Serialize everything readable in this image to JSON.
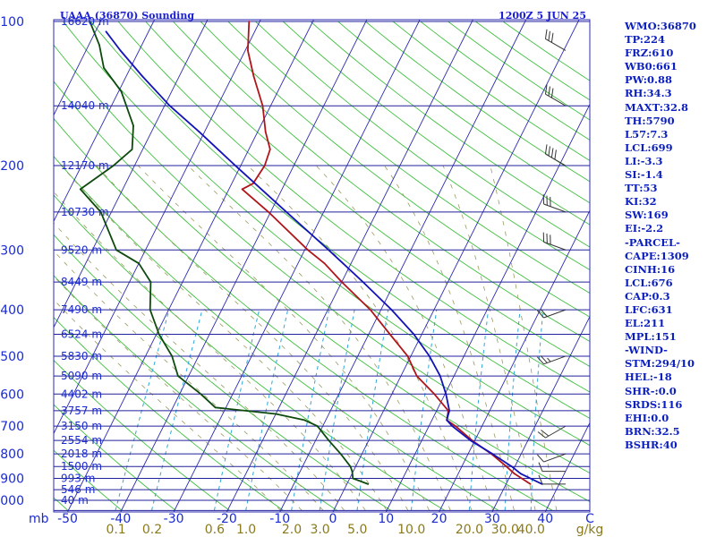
{
  "chart_data": {
    "type": "skew-t log-p sounding",
    "title": "UAAA (36870) Sounding",
    "valid_time": "1200Z  5 JUN 25",
    "pressure_axis": {
      "unit_label": "mb",
      "ticks": [
        100,
        200,
        300,
        400,
        500,
        600,
        700,
        800,
        900,
        1000
      ],
      "range": [
        1050,
        100
      ],
      "scale": "log"
    },
    "temperature_axis": {
      "ticks": [
        -50,
        -40,
        -30,
        -20,
        -10,
        0,
        10,
        20,
        30,
        40
      ],
      "end_label": "C",
      "range": [
        -50,
        50
      ]
    },
    "mixing_ratio_axis": {
      "unit_label": "g/kg",
      "ticks": [
        "0.1",
        "0.2",
        "0.6",
        "1.0",
        "2.0",
        "3.0",
        "5.0",
        "10.0",
        "20.0",
        "30.0",
        "40.0"
      ]
    },
    "height_labels": [
      {
        "p": 100,
        "label": "16620 m"
      },
      {
        "p": 150,
        "label": "14040 m"
      },
      {
        "p": 200,
        "label": "12170 m"
      },
      {
        "p": 250,
        "label": "10730 m"
      },
      {
        "p": 300,
        "label": "9520 m"
      },
      {
        "p": 350,
        "label": "8449 m"
      },
      {
        "p": 400,
        "label": "7490 m"
      },
      {
        "p": 450,
        "label": "6524 m"
      },
      {
        "p": 500,
        "label": "5830 m"
      },
      {
        "p": 550,
        "label": "5090 m"
      },
      {
        "p": 600,
        "label": "4402 m"
      },
      {
        "p": 650,
        "label": "3757 m"
      },
      {
        "p": 700,
        "label": "3150 m"
      },
      {
        "p": 750,
        "label": "2554 m"
      },
      {
        "p": 800,
        "label": "2018 m"
      },
      {
        "p": 850,
        "label": "1500 m"
      },
      {
        "p": 900,
        "label": "993 m"
      },
      {
        "p": 950,
        "label": "546 m"
      },
      {
        "p": 1000,
        "label": "40 m"
      }
    ],
    "series": [
      {
        "role": "temperature",
        "color": "#b0151a",
        "points": [
          {
            "p": 925,
            "t": 34.6
          },
          {
            "p": 880,
            "t": 30.6
          },
          {
            "p": 850,
            "t": 28.4
          },
          {
            "p": 800,
            "t": 24.4
          },
          {
            "p": 750,
            "t": 19.5
          },
          {
            "p": 700,
            "t": 15.0
          },
          {
            "p": 680,
            "t": 12.8
          },
          {
            "p": 650,
            "t": 12.2
          },
          {
            "p": 600,
            "t": 8.0
          },
          {
            "p": 550,
            "t": 3.0
          },
          {
            "p": 500,
            "t": -0.6
          },
          {
            "p": 450,
            "t": -6.0
          },
          {
            "p": 400,
            "t": -12.0
          },
          {
            "p": 350,
            "t": -20.0
          },
          {
            "p": 320,
            "t": -25.0
          },
          {
            "p": 300,
            "t": -29.4
          },
          {
            "p": 250,
            "t": -40.4
          },
          {
            "p": 224,
            "t": -47.5
          },
          {
            "p": 218,
            "t": -46.0
          },
          {
            "p": 200,
            "t": -45.5
          },
          {
            "p": 185,
            "t": -46.0
          },
          {
            "p": 170,
            "t": -48.5
          },
          {
            "p": 150,
            "t": -51.5
          },
          {
            "p": 130,
            "t": -56.0
          },
          {
            "p": 115,
            "t": -59.5
          },
          {
            "p": 100,
            "t": -62.0
          }
        ]
      },
      {
        "role": "dewpoint",
        "color": "#0e4a0e",
        "points": [
          {
            "p": 925,
            "t": 4.0
          },
          {
            "p": 900,
            "t": 0.6
          },
          {
            "p": 870,
            "t": -0.2
          },
          {
            "p": 850,
            "t": -1.0
          },
          {
            "p": 800,
            "t": -4.0
          },
          {
            "p": 750,
            "t": -7.5
          },
          {
            "p": 700,
            "t": -11.0
          },
          {
            "p": 680,
            "t": -14.0
          },
          {
            "p": 660,
            "t": -20.0
          },
          {
            "p": 640,
            "t": -32.0
          },
          {
            "p": 600,
            "t": -36.0
          },
          {
            "p": 550,
            "t": -42.0
          },
          {
            "p": 500,
            "t": -45.0
          },
          {
            "p": 450,
            "t": -49.5
          },
          {
            "p": 400,
            "t": -53.5
          },
          {
            "p": 350,
            "t": -56.0
          },
          {
            "p": 320,
            "t": -60.0
          },
          {
            "p": 300,
            "t": -65.5
          },
          {
            "p": 250,
            "t": -72.0
          },
          {
            "p": 224,
            "t": -78.0
          },
          {
            "p": 200,
            "t": -74.0
          },
          {
            "p": 185,
            "t": -72.0
          },
          {
            "p": 165,
            "t": -74.0
          },
          {
            "p": 140,
            "t": -79.5
          },
          {
            "p": 125,
            "t": -85.0
          },
          {
            "p": 112,
            "t": -88.0
          },
          {
            "p": 100,
            "t": -92.0
          }
        ]
      },
      {
        "role": "parcel",
        "color": "#1313b8",
        "points": [
          {
            "p": 925,
            "t": 36.8
          },
          {
            "p": 880,
            "t": 31.8
          },
          {
            "p": 850,
            "t": 29.4
          },
          {
            "p": 800,
            "t": 24.6
          },
          {
            "p": 750,
            "t": 19.2
          },
          {
            "p": 700,
            "t": 14.4
          },
          {
            "p": 680,
            "t": 12.8
          },
          {
            "p": 650,
            "t": 12.4
          },
          {
            "p": 600,
            "t": 10.2
          },
          {
            "p": 550,
            "t": 7.4
          },
          {
            "p": 500,
            "t": 3.5
          },
          {
            "p": 450,
            "t": -1.5
          },
          {
            "p": 400,
            "t": -8.0
          },
          {
            "p": 350,
            "t": -16.0
          },
          {
            "p": 300,
            "t": -25.5
          },
          {
            "p": 250,
            "t": -37.0
          },
          {
            "p": 200,
            "t": -51.0
          },
          {
            "p": 170,
            "t": -61.0
          },
          {
            "p": 150,
            "t": -69.0
          },
          {
            "p": 130,
            "t": -77.0
          },
          {
            "p": 115,
            "t": -83.5
          },
          {
            "p": 105,
            "t": -88.0
          }
        ]
      }
    ],
    "wind_barbs": [
      {
        "p": 925,
        "dir": 270,
        "kt": 10
      },
      {
        "p": 870,
        "dir": 270,
        "kt": 10
      },
      {
        "p": 800,
        "dir": 250,
        "kt": 10
      },
      {
        "p": 700,
        "dir": 240,
        "kt": 20
      },
      {
        "p": 500,
        "dir": 250,
        "kt": 25
      },
      {
        "p": 400,
        "dir": 250,
        "kt": 20
      },
      {
        "p": 300,
        "dir": 290,
        "kt": 30
      },
      {
        "p": 250,
        "dir": 290,
        "kt": 30
      },
      {
        "p": 200,
        "dir": 300,
        "kt": 40
      },
      {
        "p": 150,
        "dir": 300,
        "kt": 30
      },
      {
        "p": 115,
        "dir": 300,
        "kt": 30
      }
    ],
    "indices": [
      "WMO:36870",
      "TP:224",
      "FRZ:610",
      "WB0:661",
      "PW:0.88",
      "RH:34.3",
      "MAXT:32.8",
      "TH:5790",
      "L57:7.3",
      "LCL:699",
      "LI:-3.3",
      "SI:-1.4",
      "TT:53",
      "KI:32",
      "SW:169",
      "EI:-2.2",
      "-PARCEL-",
      "CAPE:1309",
      "CINH:16",
      "LCL:676",
      "CAP:0.3",
      "LFC:631",
      "EL:211",
      "MPL:151",
      "-WIND-",
      "STM:294/10",
      "HEL:-18",
      "SHR-:0.0",
      "SRDS:116",
      "EHI:0.0",
      "BRN:32.5",
      "BSHR:40"
    ]
  },
  "colors": {
    "isobar": "#22229c",
    "isotherm": "#2b2bb0",
    "dry_adiabat": "#40c040",
    "moist_adiabat": "#9a9a60",
    "mixing_ratio": "#30a8d8",
    "axis_text": "#1b2bd0",
    "mixing_ratio_text": "#8a7a1c",
    "wind_barb": "#333333"
  }
}
